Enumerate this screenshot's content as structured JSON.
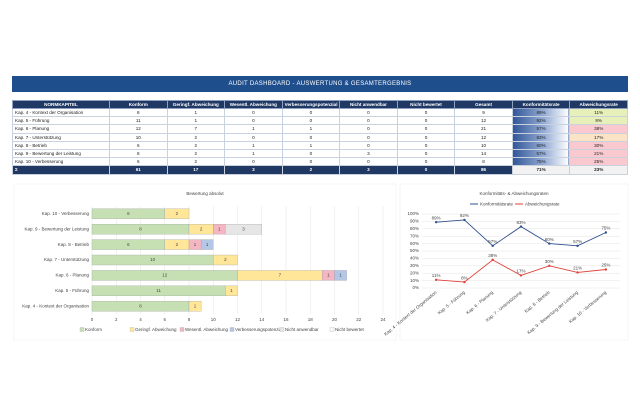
{
  "header": {
    "title": "AUDIT DASHBOARD - AUSWERTUNG & GESAMTERGEBNIS"
  },
  "table": {
    "columns": [
      "NORMKAPITEL",
      "Konform",
      "Geringf. Abweichung",
      "Wesentl. Abweichung",
      "Verbesserungspotenzial",
      "Nicht anwendbar",
      "Nicht bewertet",
      "Gesamt",
      "Konformitätsrate",
      "Abweichungsrate"
    ],
    "rows": [
      [
        "Kap. 4 - Kontext der Organisation",
        "8",
        "1",
        "0",
        "0",
        "0",
        "0",
        "9",
        "89%",
        "11%"
      ],
      [
        "Kap. 5 - Führung",
        "11",
        "1",
        "0",
        "0",
        "0",
        "0",
        "12",
        "92%",
        "8%"
      ],
      [
        "Kap. 6 - Planung",
        "12",
        "7",
        "1",
        "1",
        "0",
        "0",
        "21",
        "57%",
        "38%"
      ],
      [
        "Kap. 7 - Unterstützung",
        "10",
        "2",
        "0",
        "0",
        "0",
        "0",
        "12",
        "83%",
        "17%"
      ],
      [
        "Kap. 8 - Betrieb",
        "6",
        "2",
        "1",
        "1",
        "0",
        "0",
        "10",
        "60%",
        "30%"
      ],
      [
        "Kap. 9 - Bewertung der Leistung",
        "8",
        "2",
        "1",
        "0",
        "3",
        "0",
        "14",
        "57%",
        "21%"
      ],
      [
        "Kap. 10 - Verbesserung",
        "6",
        "2",
        "0",
        "0",
        "0",
        "0",
        "8",
        "75%",
        "25%"
      ]
    ],
    "total": [
      "Σ",
      "61",
      "17",
      "3",
      "2",
      "3",
      "0",
      "86",
      "71%",
      "23%"
    ]
  },
  "chart_data": [
    {
      "type": "bar",
      "orientation": "horizontal",
      "stacked": true,
      "title": "Bewertung absolut",
      "categories": [
        "Kap. 10 - Verbesserung",
        "Kap. 9 - Bewertung der Leistung",
        "Kap. 8 - Betrieb",
        "Kap. 7 - Unterstützung",
        "Kap. 6 - Planung",
        "Kap. 5 - Führung",
        "Kap. 4 - Kontext der Organisation"
      ],
      "series": [
        {
          "name": "Konform",
          "color": "#c6e0b4",
          "values": [
            6,
            8,
            6,
            10,
            12,
            11,
            8
          ]
        },
        {
          "name": "Geringf. Abweichung",
          "color": "#ffe699",
          "values": [
            2,
            2,
            2,
            2,
            7,
            1,
            1
          ]
        },
        {
          "name": "Wesentl. Abweichung",
          "color": "#f4b6c2",
          "values": [
            0,
            1,
            1,
            0,
            1,
            0,
            0
          ]
        },
        {
          "name": "Verbesserungspotenzial",
          "color": "#b4c7e7",
          "values": [
            0,
            0,
            1,
            0,
            1,
            0,
            0
          ]
        },
        {
          "name": "Nicht anwendbar",
          "color": "#e7e6e6",
          "values": [
            0,
            3,
            0,
            0,
            0,
            0,
            0
          ]
        },
        {
          "name": "Nicht bewertet",
          "color": "#f8f8f8",
          "values": [
            0,
            0,
            0,
            0,
            0,
            0,
            0
          ]
        }
      ],
      "xlim": [
        0,
        24
      ],
      "xticks": [
        0,
        2,
        4,
        6,
        8,
        10,
        12,
        14,
        16,
        18,
        20,
        22,
        24
      ],
      "grid": true,
      "legend": "bottom"
    },
    {
      "type": "line",
      "title": "Konformitäts- & Abweichungsraten",
      "categories": [
        "Kap. 4 - Kontext der Organisation",
        "Kap. 5 - Führung",
        "Kap. 6 - Planung",
        "Kap. 7 - Unterstützung",
        "Kap. 8 - Betrieb",
        "Kap. 9 - Bewertung der Leistung",
        "Kap. 10 - Verbesserung"
      ],
      "series": [
        {
          "name": "Konformitätsrate",
          "color": "#2f4f8f",
          "values": [
            89,
            92,
            57,
            83,
            60,
            57,
            75
          ],
          "value_labels": [
            "89%",
            "92%",
            "57%",
            "83%",
            "60%",
            "57%",
            "75%"
          ]
        },
        {
          "name": "Abweichungsrate",
          "color": "#e0403a",
          "values": [
            11,
            8,
            38,
            17,
            30,
            21,
            25
          ],
          "value_labels": [
            "11%",
            "8%",
            "38%",
            "17%",
            "30%",
            "21%",
            "25%"
          ]
        }
      ],
      "ylim": [
        0,
        100
      ],
      "yticks": [
        {
          "value": 0,
          "label": "0%"
        },
        {
          "value": 10,
          "label": "10%"
        },
        {
          "value": 20,
          "label": "20%"
        },
        {
          "value": 30,
          "label": "30%"
        },
        {
          "value": 40,
          "label": "40%"
        },
        {
          "value": 50,
          "label": "50%"
        },
        {
          "value": 60,
          "label": "60%"
        },
        {
          "value": 70,
          "label": "70%"
        },
        {
          "value": 80,
          "label": "80%"
        },
        {
          "value": 90,
          "label": "90%"
        },
        {
          "value": 100,
          "label": "100%"
        }
      ],
      "grid": true,
      "legend": "top"
    }
  ]
}
